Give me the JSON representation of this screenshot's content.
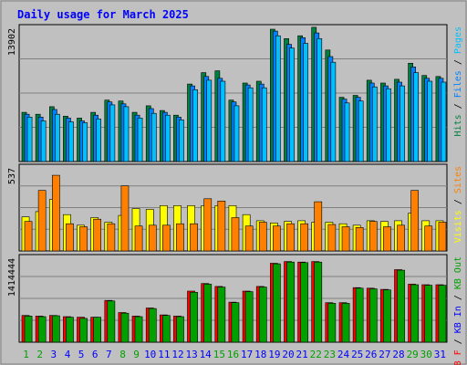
{
  "chart_data": {
    "title": "Daily usage for March 2025",
    "days": [
      "1",
      "2",
      "3",
      "4",
      "5",
      "6",
      "7",
      "8",
      "9",
      "10",
      "11",
      "12",
      "13",
      "14",
      "15",
      "16",
      "17",
      "18",
      "19",
      "20",
      "21",
      "22",
      "23",
      "24",
      "25",
      "26",
      "27",
      "28",
      "29",
      "30",
      "31"
    ],
    "weekend_days": [
      "1",
      "2",
      "8",
      "9",
      "15",
      "16",
      "22",
      "23",
      "29",
      "30"
    ],
    "colors": {
      "background": "#c0c0c0",
      "title": "#0000ff",
      "plot_bg": "#c0c0c0",
      "grid": "#808080",
      "hits": "#008040",
      "files": "#0080ff",
      "pages": "#00c0ff",
      "visits": "#ffff00",
      "sites": "#ff8000",
      "kbin": "#00c000",
      "kbout": "#ff0000",
      "kbf": "#ff0000",
      "day_weekday": "#0000ff",
      "day_weekend": "#00a000"
    },
    "panels": [
      {
        "type": "bar",
        "name": "top",
        "ytick": "13902",
        "ymax": 13902,
        "legend": [
          {
            "label": "Hits",
            "color": "#008040"
          },
          {
            "label": "Files",
            "color": "#0080ff"
          },
          {
            "label": "Pages",
            "color": "#00c0ff"
          }
        ],
        "series": [
          {
            "name": "Hits",
            "values": [
              5200,
              5000,
              5800,
              4800,
              4600,
              5200,
              6500,
              6400,
              5200,
              5900,
              5400,
              4900,
              8200,
              9400,
              9600,
              6500,
              8300,
              8500,
              14000,
              13000,
              13300,
              14200,
              11800,
              6800,
              7000,
              8600,
              8300,
              8700,
              10400,
              9100,
              9000
            ]
          },
          {
            "name": "Files",
            "values": [
              5000,
              4700,
              5500,
              4600,
              4300,
              4900,
              6300,
              6100,
              4900,
              5600,
              5200,
              4700,
              8000,
              9000,
              8800,
              6300,
              8100,
              8200,
              13800,
              12400,
              13100,
              13600,
              11100,
              6600,
              6800,
              8300,
              8000,
              8400,
              10000,
              8800,
              8800
            ]
          },
          {
            "name": "Pages",
            "values": [
              4700,
              4300,
              5000,
              4200,
              4100,
              4500,
              6000,
              5800,
              4600,
              5100,
              4900,
              4400,
              7600,
              8600,
              8500,
              5900,
              7800,
              7800,
              13300,
              12000,
              12500,
              13000,
              10500,
              6200,
              6400,
              7900,
              7700,
              8000,
              9400,
              8500,
              8400
            ]
          }
        ]
      },
      {
        "type": "bar",
        "name": "middle",
        "ytick": "537",
        "ymax": 537,
        "legend": [
          {
            "label": "Visits",
            "color": "#ffff00"
          },
          {
            "label": "Sites",
            "color": "#ff8000"
          }
        ],
        "series": [
          {
            "name": "Visits",
            "values": [
              225,
              260,
              340,
              240,
              170,
              220,
              190,
              235,
              280,
              275,
              300,
              300,
              300,
              300,
              300,
              300,
              240,
              200,
              185,
              195,
              200,
              190,
              190,
              180,
              170,
              200,
              195,
              200,
              250,
              200,
              200
            ]
          },
          {
            "name": "Sites",
            "values": [
              195,
              400,
              500,
              180,
              160,
              210,
              180,
              430,
              165,
              170,
              170,
              180,
              180,
              345,
              330,
              220,
              165,
              190,
              165,
              180,
              180,
              325,
              175,
              160,
              155,
              195,
              160,
              170,
              400,
              165,
              190
            ]
          }
        ]
      },
      {
        "type": "bar",
        "name": "bottom",
        "ytick": "1414444",
        "ymax": 1414444,
        "legend": [
          {
            "label": "KB F",
            "color": "#ff0000"
          },
          {
            "label": "KB In",
            "color": "#0000ff"
          },
          {
            "label": "KB Out",
            "color": "#00a000"
          }
        ],
        "series": [
          {
            "name": "KB F",
            "values": [
              460000,
              450000,
              460000,
              440000,
              430000,
              430000,
              720000,
              510000,
              450000,
              590000,
              470000,
              450000,
              880000,
              1010000,
              960000,
              690000,
              880000,
              960000,
              1360000,
              1390000,
              1380000,
              1390000,
              680000,
              680000,
              940000,
              930000,
              910000,
              1250000,
              1000000,
              990000,
              990000
            ]
          },
          {
            "name": "KB Out",
            "values": [
              450000,
              440000,
              455000,
              430000,
              410000,
              430000,
              710000,
              500000,
              440000,
              580000,
              460000,
              440000,
              860000,
              1000000,
              950000,
              680000,
              870000,
              950000,
              1350000,
              1380000,
              1370000,
              1380000,
              670000,
              670000,
              930000,
              920000,
              900000,
              1240000,
              990000,
              980000,
              980000
            ]
          }
        ]
      }
    ]
  }
}
